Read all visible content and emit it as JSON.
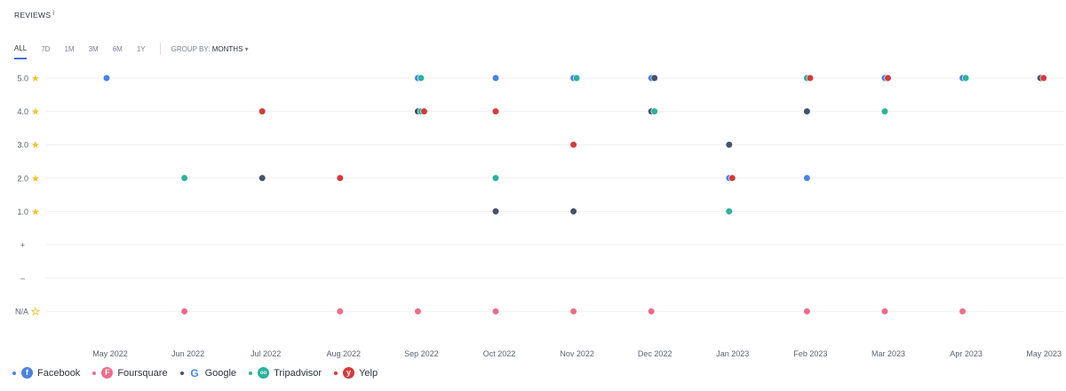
{
  "header": {
    "title": "REVIEWS",
    "info_mark": "i"
  },
  "tabs": [
    "ALL",
    "7D",
    "1M",
    "3M",
    "6M",
    "1Y"
  ],
  "active_tab": "ALL",
  "group_by": {
    "label": "GROUP BY:",
    "value": "MONTHS"
  },
  "colors": {
    "Facebook": "#4a83e0",
    "Foursquare": "#ef6b8c",
    "Google": "#46526a",
    "Tripadvisor": "#2bb39a",
    "Yelp": "#d63a3a",
    "star": "#f2c12e"
  },
  "legend": [
    {
      "name": "Facebook",
      "icon": "facebook-icon",
      "glyph": "f"
    },
    {
      "name": "Foursquare",
      "icon": "foursquare-icon",
      "glyph": "F"
    },
    {
      "name": "Google",
      "icon": "google-icon",
      "glyph": "G"
    },
    {
      "name": "Tripadvisor",
      "icon": "tripadvisor-icon",
      "glyph": "oo"
    },
    {
      "name": "Yelp",
      "icon": "yelp-icon",
      "glyph": "y"
    }
  ],
  "chart_data": {
    "type": "scatter",
    "title": "REVIEWS",
    "categories": [
      "May 2022",
      "Jun 2022",
      "Jul 2022",
      "Aug 2022",
      "Sep 2022",
      "Oct 2022",
      "Nov 2022",
      "Dec 2022",
      "Jan 2023",
      "Feb 2023",
      "Mar 2023",
      "Apr 2023",
      "May 2023"
    ],
    "y_levels": [
      "5.0",
      "4.0",
      "3.0",
      "2.0",
      "1.0",
      "+",
      "–",
      "N/A"
    ],
    "star_levels": [
      "5.0",
      "4.0",
      "3.0",
      "2.0",
      "1.0"
    ],
    "empty_star_levels": [
      "N/A"
    ],
    "grid": true,
    "legend_position": "bottom-left",
    "series": [
      {
        "name": "Facebook",
        "points": [
          [
            "May 2022",
            "5.0"
          ],
          [
            "Sep 2022",
            "5.0"
          ],
          [
            "Oct 2022",
            "5.0"
          ],
          [
            "Nov 2022",
            "5.0"
          ],
          [
            "Dec 2022",
            "5.0"
          ],
          [
            "Jan 2023",
            "2.0"
          ],
          [
            "Feb 2023",
            "2.0"
          ],
          [
            "Mar 2023",
            "5.0"
          ],
          [
            "Apr 2023",
            "5.0"
          ]
        ]
      },
      {
        "name": "Foursquare",
        "points": [
          [
            "Jun 2022",
            "N/A"
          ],
          [
            "Aug 2022",
            "N/A"
          ],
          [
            "Sep 2022",
            "N/A"
          ],
          [
            "Oct 2022",
            "N/A"
          ],
          [
            "Nov 2022",
            "N/A"
          ],
          [
            "Dec 2022",
            "N/A"
          ],
          [
            "Feb 2023",
            "N/A"
          ],
          [
            "Mar 2023",
            "N/A"
          ],
          [
            "Apr 2023",
            "N/A"
          ]
        ]
      },
      {
        "name": "Google",
        "points": [
          [
            "Jul 2022",
            "2.0"
          ],
          [
            "Sep 2022",
            "4.0"
          ],
          [
            "Oct 2022",
            "1.0"
          ],
          [
            "Nov 2022",
            "1.0"
          ],
          [
            "Dec 2022",
            "5.0"
          ],
          [
            "Dec 2022",
            "4.0"
          ],
          [
            "Jan 2023",
            "3.0"
          ],
          [
            "Feb 2023",
            "4.0"
          ],
          [
            "May 2023",
            "5.0"
          ]
        ]
      },
      {
        "name": "Tripadvisor",
        "points": [
          [
            "Jun 2022",
            "2.0"
          ],
          [
            "Sep 2022",
            "5.0"
          ],
          [
            "Sep 2022",
            "4.0"
          ],
          [
            "Oct 2022",
            "2.0"
          ],
          [
            "Nov 2022",
            "5.0"
          ],
          [
            "Dec 2022",
            "4.0"
          ],
          [
            "Jan 2023",
            "1.0"
          ],
          [
            "Feb 2023",
            "5.0"
          ],
          [
            "Mar 2023",
            "4.0"
          ],
          [
            "Apr 2023",
            "5.0"
          ]
        ]
      },
      {
        "name": "Yelp",
        "points": [
          [
            "Jul 2022",
            "4.0"
          ],
          [
            "Aug 2022",
            "2.0"
          ],
          [
            "Sep 2022",
            "4.0"
          ],
          [
            "Oct 2022",
            "4.0"
          ],
          [
            "Nov 2022",
            "3.0"
          ],
          [
            "Jan 2023",
            "2.0"
          ],
          [
            "Feb 2023",
            "5.0"
          ],
          [
            "Mar 2023",
            "5.0"
          ],
          [
            "May 2023",
            "5.0"
          ]
        ]
      }
    ]
  }
}
